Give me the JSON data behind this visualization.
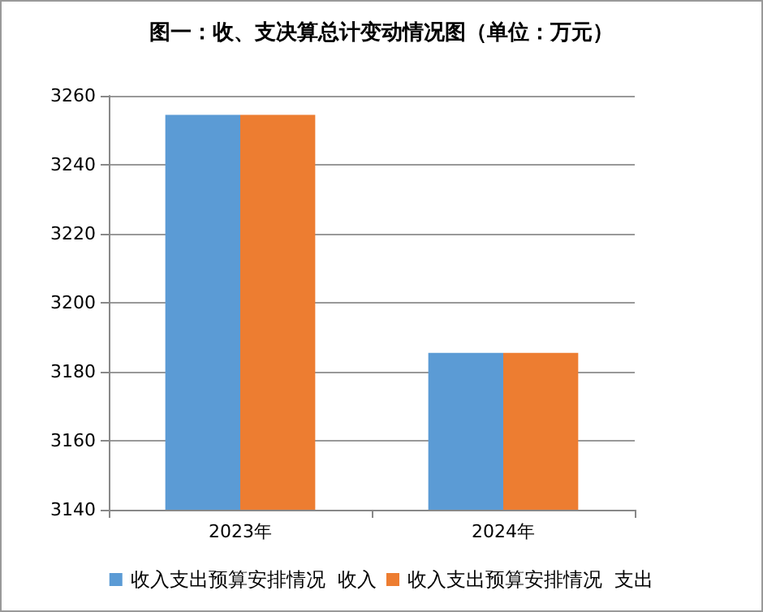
{
  "chart_data": {
    "type": "bar",
    "title": "图一：收、支决算总计变动情况图（单位：万元）",
    "categories": [
      "2023年",
      "2024年"
    ],
    "series": [
      {
        "name": "收入支出预算安排情况  收入",
        "color": "#5b9bd5",
        "values": [
          3254.5,
          3185.5
        ]
      },
      {
        "name": "收入支出预算安排情况  支出",
        "color": "#ed7d31",
        "values": [
          3254.5,
          3185.5
        ]
      }
    ],
    "ylim": [
      3140,
      3260
    ],
    "yticks": [
      3140,
      3160,
      3180,
      3200,
      3220,
      3240,
      3260
    ],
    "grid": "y",
    "legend": "bottom"
  }
}
